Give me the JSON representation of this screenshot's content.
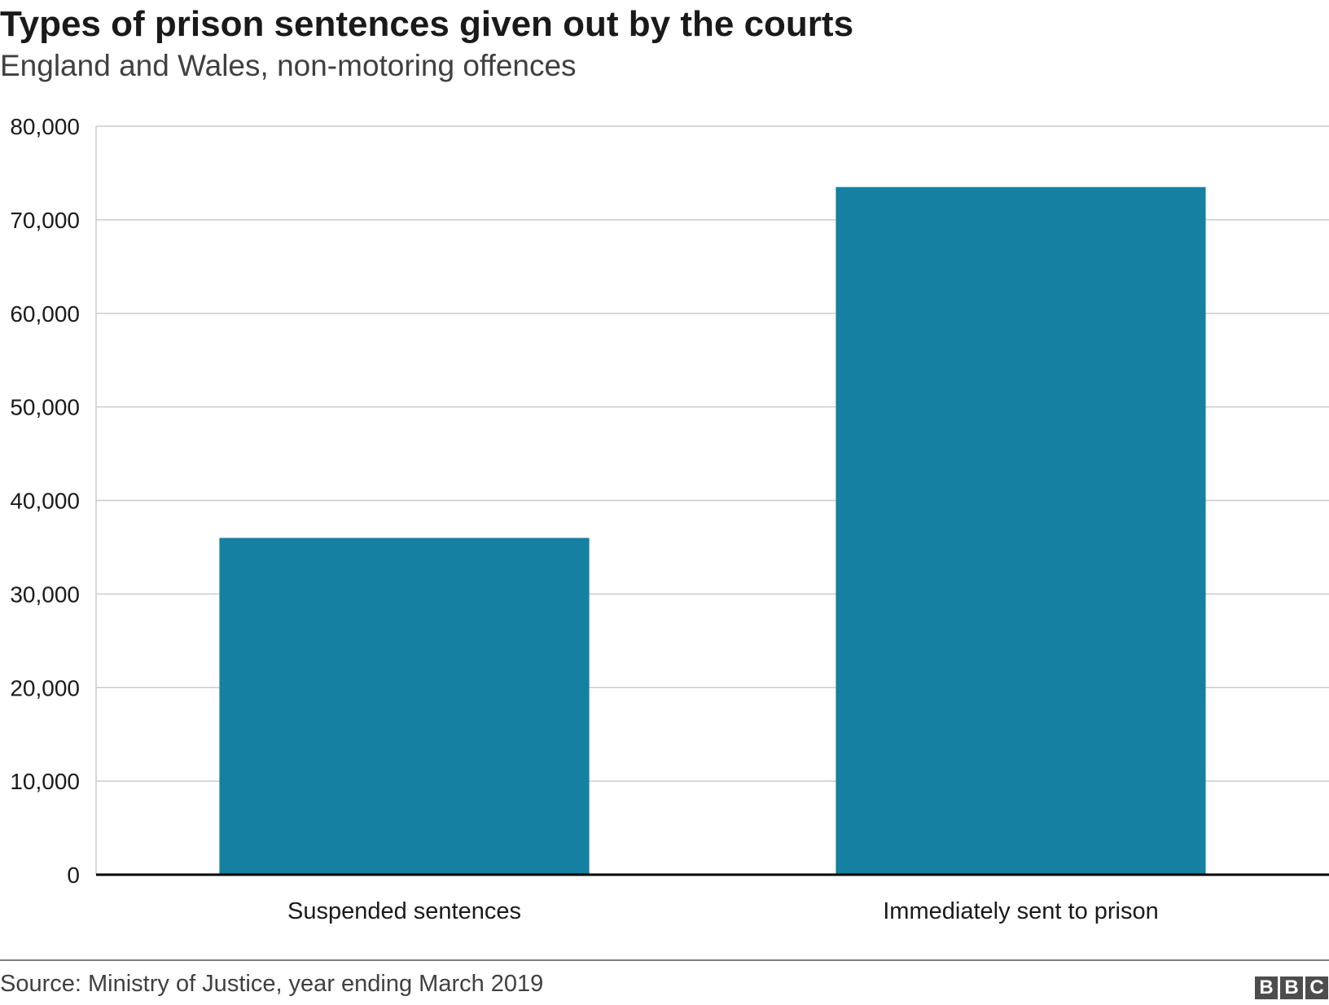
{
  "chart_data": {
    "type": "bar",
    "title": "Types of prison sentences given out by the courts",
    "subtitle": "England and Wales, non-motoring offences",
    "categories": [
      "Suspended sentences",
      "Immediately sent to prison"
    ],
    "values": [
      36000,
      73500
    ],
    "xlabel": "",
    "ylabel": "",
    "ylim": [
      0,
      80000
    ],
    "yticks": [
      0,
      10000,
      20000,
      30000,
      40000,
      50000,
      60000,
      70000,
      80000
    ],
    "ytick_labels": [
      "0",
      "10,000",
      "20,000",
      "30,000",
      "40,000",
      "50,000",
      "60,000",
      "70,000",
      "80,000"
    ],
    "grid": true,
    "legend": "none",
    "bar_color": "#1580a2"
  },
  "footer": {
    "source": "Source: Ministry of Justice, year ending March 2019",
    "logo_letters": [
      "B",
      "B",
      "C"
    ]
  }
}
